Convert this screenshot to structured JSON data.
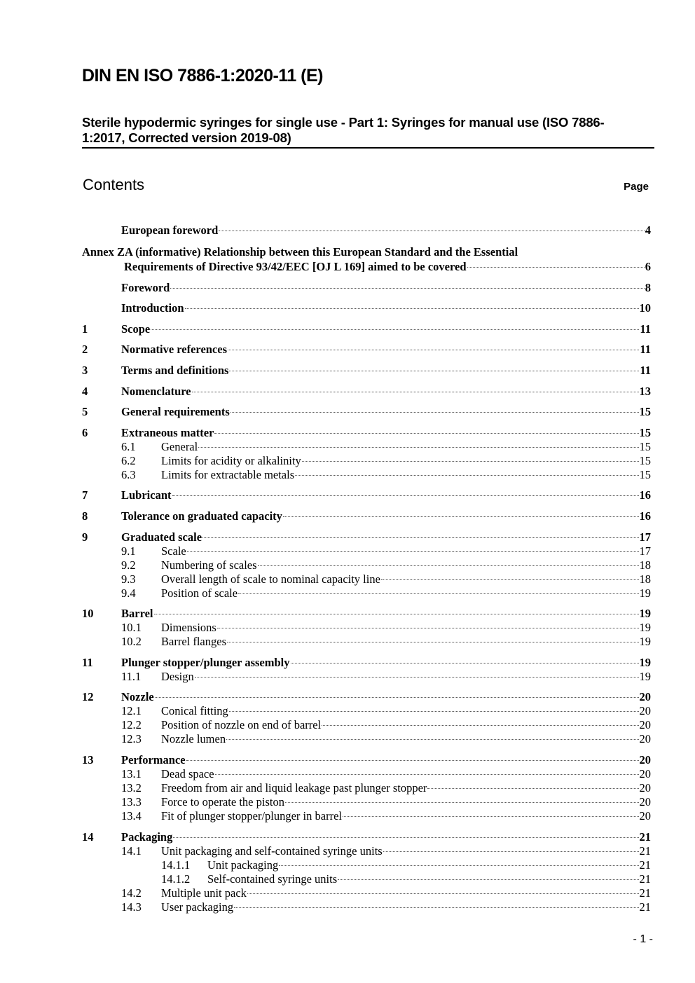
{
  "header": {
    "title": "DIN EN ISO 7886-1:2020-11 (E)",
    "subtitle": "Sterile hypodermic syringes for single use - Part 1: Syringes for manual use (ISO 7886-1:2017, Corrected version 2019-08)"
  },
  "contents": {
    "heading": "Contents",
    "page_label": "Page",
    "entries": [
      {
        "level": 1,
        "num": "",
        "title": "European foreword",
        "page": "4"
      },
      {
        "level": "annex",
        "line1": "Annex ZA (informative)  Relationship between this European Standard and the Essential",
        "title": "Requirements of Directive 93/42/EEC [OJ L 169] aimed to be covered",
        "page": "6"
      },
      {
        "level": 1,
        "num": "",
        "title": "Foreword",
        "page": "8"
      },
      {
        "level": 1,
        "num": "",
        "title": "Introduction",
        "page": "10"
      },
      {
        "level": 1,
        "num": "1",
        "title": "Scope",
        "page": "11"
      },
      {
        "level": 1,
        "num": "2",
        "title": "Normative references",
        "page": "11"
      },
      {
        "level": 1,
        "num": "3",
        "title": "Terms and definitions",
        "page": "11"
      },
      {
        "level": 1,
        "num": "4",
        "title": "Nomenclature",
        "page": "13"
      },
      {
        "level": 1,
        "num": "5",
        "title": "General requirements",
        "page": "15"
      },
      {
        "level": 1,
        "num": "6",
        "title": "Extraneous matter",
        "page": "15"
      },
      {
        "level": 2,
        "num": "6.1",
        "title": "General",
        "page": "15"
      },
      {
        "level": 2,
        "num": "6.2",
        "title": "Limits for acidity or alkalinity",
        "page": "15"
      },
      {
        "level": 2,
        "num": "6.3",
        "title": "Limits for extractable metals",
        "page": "15"
      },
      {
        "level": 1,
        "num": "7",
        "title": "Lubricant",
        "page": "16"
      },
      {
        "level": 1,
        "num": "8",
        "title": "Tolerance on graduated capacity",
        "page": "16"
      },
      {
        "level": 1,
        "num": "9",
        "title": "Graduated scale",
        "page": "17"
      },
      {
        "level": 2,
        "num": "9.1",
        "title": "Scale",
        "page": "17"
      },
      {
        "level": 2,
        "num": "9.2",
        "title": "Numbering of scales",
        "page": "18"
      },
      {
        "level": 2,
        "num": "9.3",
        "title": "Overall length of scale to nominal capacity line",
        "page": "18"
      },
      {
        "level": 2,
        "num": "9.4",
        "title": "Position of scale",
        "page": "19"
      },
      {
        "level": 1,
        "num": "10",
        "title": "Barrel",
        "page": "19"
      },
      {
        "level": 2,
        "num": "10.1",
        "title": "Dimensions",
        "page": "19"
      },
      {
        "level": 2,
        "num": "10.2",
        "title": "Barrel flanges",
        "page": "19"
      },
      {
        "level": 1,
        "num": "11",
        "title": "Plunger stopper/plunger assembly",
        "page": "19"
      },
      {
        "level": 2,
        "num": "11.1",
        "title": "Design",
        "page": "19"
      },
      {
        "level": 1,
        "num": "12",
        "title": "Nozzle",
        "page": "20"
      },
      {
        "level": 2,
        "num": "12.1",
        "title": "Conical fitting",
        "page": "20"
      },
      {
        "level": 2,
        "num": "12.2",
        "title": "Position of nozzle on end of barrel",
        "page": "20"
      },
      {
        "level": 2,
        "num": "12.3",
        "title": "Nozzle lumen",
        "page": "20"
      },
      {
        "level": 1,
        "num": "13",
        "title": "Performance",
        "page": "20"
      },
      {
        "level": 2,
        "num": "13.1",
        "title": "Dead space",
        "page": "20"
      },
      {
        "level": 2,
        "num": "13.2",
        "title": "Freedom from air and liquid leakage past plunger stopper",
        "page": "20"
      },
      {
        "level": 2,
        "num": "13.3",
        "title": "Force to operate the piston",
        "page": "20"
      },
      {
        "level": 2,
        "num": "13.4",
        "title": "Fit of plunger stopper/plunger in barrel",
        "page": "20"
      },
      {
        "level": 1,
        "num": "14",
        "title": "Packaging",
        "page": "21"
      },
      {
        "level": 2,
        "num": "14.1",
        "title": "Unit packaging and self-contained syringe units",
        "page": "21"
      },
      {
        "level": 3,
        "num": "14.1.1",
        "title": "Unit packaging",
        "page": "21"
      },
      {
        "level": 3,
        "num": "14.1.2",
        "title": "Self-contained syringe units",
        "page": "21"
      },
      {
        "level": 2,
        "num": "14.2",
        "title": "Multiple unit pack",
        "page": "21"
      },
      {
        "level": 2,
        "num": "14.3",
        "title": "User packaging",
        "page": "21"
      }
    ]
  },
  "footer": {
    "page_number": "- 1 -"
  }
}
